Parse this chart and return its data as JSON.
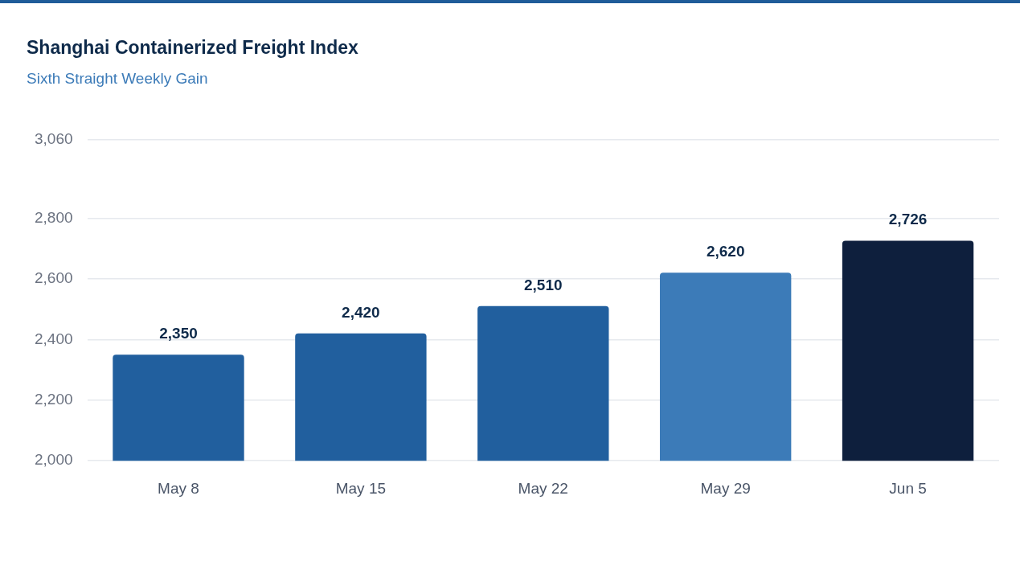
{
  "chart_data": {
    "type": "bar",
    "title": "Shanghai Containerized Freight Index",
    "subtitle": "Sixth Straight Weekly Gain",
    "categories": [
      "May 8",
      "May 15",
      "May 22",
      "May 29",
      "Jun 5"
    ],
    "values": [
      2350,
      2420,
      2510,
      2620,
      2726
    ],
    "value_labels": [
      "2,350",
      "2,420",
      "2,510",
      "2,620",
      "2,726"
    ],
    "colors": [
      "#215f9e",
      "#215f9e",
      "#215f9e",
      "#3c7bb8",
      "#0e1f3d"
    ],
    "ylim": [
      2000,
      3060
    ],
    "yticks": [
      {
        "value": 2000,
        "label": "2,000"
      },
      {
        "value": 2200,
        "label": "2,200"
      },
      {
        "value": 2400,
        "label": "2,400"
      },
      {
        "value": 2600,
        "label": "2,600"
      },
      {
        "value": 2800,
        "label": "2,800"
      },
      {
        "value": 3060,
        "label": "3,060"
      }
    ],
    "grid": "y",
    "legend": false
  }
}
